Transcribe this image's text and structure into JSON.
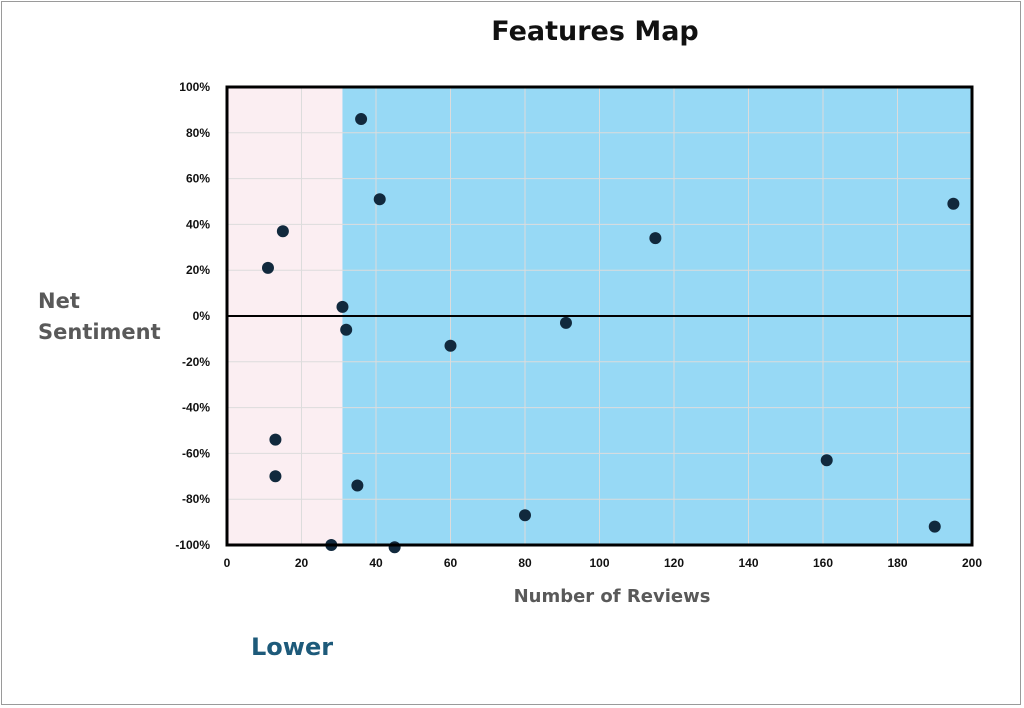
{
  "chart_data": {
    "type": "scatter",
    "title": "Features Map",
    "xlabel": "Number of Reviews",
    "ylabel_lines": [
      "Net",
      "Sentiment"
    ],
    "xlim": [
      0,
      200
    ],
    "ylim": [
      -100,
      100
    ],
    "x_ticks": [
      0,
      20,
      40,
      60,
      80,
      100,
      120,
      140,
      160,
      180,
      200
    ],
    "y_ticks": [
      -100,
      -80,
      -60,
      -40,
      -20,
      0,
      20,
      40,
      60,
      80,
      100
    ],
    "y_tick_labels": [
      "-100%",
      "-80%",
      "-60%",
      "-40%",
      "-20%",
      "0%",
      "20%",
      "40%",
      "60%",
      "80%",
      "100%"
    ],
    "grid": true,
    "regions": [
      {
        "x_from": 0,
        "x_to": 31,
        "color": "#fbeef2"
      },
      {
        "x_from": 31,
        "x_to": 200,
        "color": "#97d9f5"
      }
    ],
    "point_color": "#11293d",
    "points": [
      {
        "x": 11,
        "y": 21
      },
      {
        "x": 15,
        "y": 37
      },
      {
        "x": 36,
        "y": 86
      },
      {
        "x": 41,
        "y": 51
      },
      {
        "x": 31,
        "y": 4
      },
      {
        "x": 32,
        "y": -6
      },
      {
        "x": 13,
        "y": -54
      },
      {
        "x": 13,
        "y": -70
      },
      {
        "x": 35,
        "y": -74
      },
      {
        "x": 28,
        "y": -100
      },
      {
        "x": 45,
        "y": -101
      },
      {
        "x": 60,
        "y": -13
      },
      {
        "x": 80,
        "y": -87
      },
      {
        "x": 91,
        "y": -3
      },
      {
        "x": 115,
        "y": 34
      },
      {
        "x": 161,
        "y": -63
      },
      {
        "x": 190,
        "y": -92
      },
      {
        "x": 195,
        "y": 49
      }
    ]
  },
  "annotation": "Lower"
}
